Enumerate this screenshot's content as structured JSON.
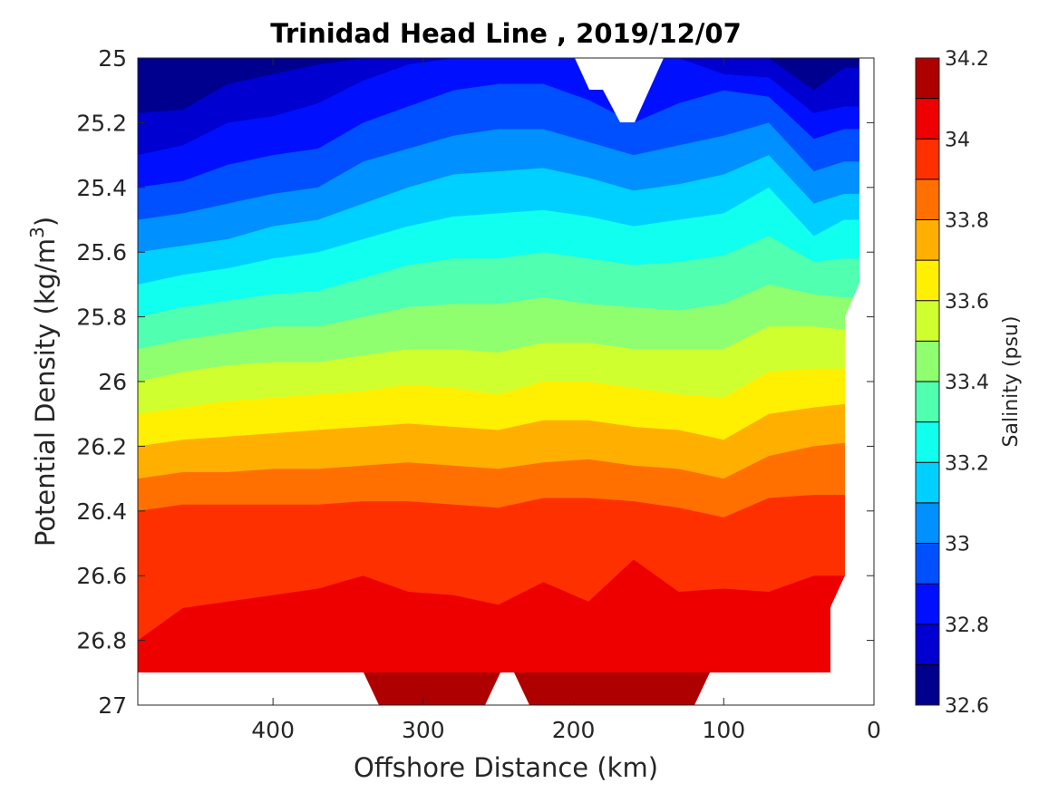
{
  "chart_data": {
    "type": "heatmap",
    "title": "Trinidad Head Line , 2019/12/07",
    "xlabel": "Offshore Distance (km)",
    "ylabel": "Potential Density (kg/m",
    "ylabel_sup": "3",
    "ylabel_close": ")",
    "xlim": [
      490,
      0
    ],
    "ylim": [
      25,
      27
    ],
    "x_reversed": true,
    "y_reversed": true,
    "x_ticks": [
      {
        "value": 400,
        "label": "400"
      },
      {
        "value": 300,
        "label": "300"
      },
      {
        "value": 200,
        "label": "200"
      },
      {
        "value": 100,
        "label": "100"
      },
      {
        "value": 0,
        "label": "0"
      }
    ],
    "y_ticks": [
      {
        "value": 25,
        "label": "25"
      },
      {
        "value": 25.2,
        "label": "25.2"
      },
      {
        "value": 25.4,
        "label": "25.4"
      },
      {
        "value": 25.6,
        "label": "25.6"
      },
      {
        "value": 25.8,
        "label": "25.8"
      },
      {
        "value": 26,
        "label": "26"
      },
      {
        "value": 26.2,
        "label": "26.2"
      },
      {
        "value": 26.4,
        "label": "26.4"
      },
      {
        "value": 26.6,
        "label": "26.6"
      },
      {
        "value": 26.8,
        "label": "26.8"
      },
      {
        "value": 27,
        "label": "27"
      }
    ],
    "colorbar": {
      "label": "Salinity (psu)",
      "range": [
        32.6,
        34.2
      ],
      "levels": [
        32.6,
        32.7,
        32.8,
        32.9,
        33.0,
        33.1,
        33.2,
        33.3,
        33.4,
        33.5,
        33.6,
        33.7,
        33.8,
        33.9,
        34.0,
        34.1,
        34.2
      ],
      "colors": [
        "#00008f",
        "#0000d0",
        "#0010ff",
        "#0050ff",
        "#0090ff",
        "#00d0ff",
        "#10ffef",
        "#50ffaf",
        "#90ff6f",
        "#d0ff2f",
        "#ffef00",
        "#ffaf00",
        "#ff7000",
        "#ff3000",
        "#ef0000",
        "#af0000"
      ],
      "ticks": [
        {
          "value": 32.6,
          "label": "32.6"
        },
        {
          "value": 32.8,
          "label": "32.8"
        },
        {
          "value": 33.0,
          "label": "33"
        },
        {
          "value": 33.2,
          "label": "33.2"
        },
        {
          "value": 33.4,
          "label": "33.4"
        },
        {
          "value": 33.6,
          "label": "33.6"
        },
        {
          "value": 33.8,
          "label": "33.8"
        },
        {
          "value": 34.0,
          "label": "34"
        },
        {
          "value": 34.2,
          "label": "34.2"
        }
      ]
    },
    "x_samples": [
      490,
      460,
      430,
      400,
      370,
      340,
      310,
      280,
      250,
      220,
      190,
      160,
      130,
      100,
      70,
      40,
      20
    ],
    "contour_boundaries": [
      {
        "upper_level": 32.7,
        "density": [
          25.17,
          25.16,
          25.08,
          25.05,
          25.02,
          25.0,
          25.0,
          25.0,
          25.0,
          25.0,
          25.0,
          25.0,
          25.0,
          25.0,
          25.0,
          25.1,
          25.03
        ]
      },
      {
        "upper_level": 32.8,
        "density": [
          25.3,
          25.27,
          25.2,
          25.18,
          25.14,
          25.07,
          25.02,
          25.0,
          25.0,
          25.0,
          25.0,
          25.0,
          25.0,
          25.05,
          25.06,
          25.17,
          25.15
        ]
      },
      {
        "upper_level": 32.9,
        "density": [
          25.4,
          25.38,
          25.33,
          25.3,
          25.28,
          25.2,
          25.15,
          25.1,
          25.08,
          25.08,
          25.13,
          25.2,
          25.14,
          25.1,
          25.12,
          25.25,
          25.22
        ]
      },
      {
        "upper_level": 33.0,
        "density": [
          25.5,
          25.48,
          25.45,
          25.42,
          25.4,
          25.32,
          25.28,
          25.24,
          25.22,
          25.22,
          25.26,
          25.3,
          25.27,
          25.24,
          25.2,
          25.35,
          25.32
        ]
      },
      {
        "upper_level": 33.1,
        "density": [
          25.6,
          25.58,
          25.56,
          25.52,
          25.5,
          25.45,
          25.4,
          25.36,
          25.35,
          25.34,
          25.37,
          25.41,
          25.39,
          25.36,
          25.3,
          25.45,
          25.42
        ]
      },
      {
        "upper_level": 33.2,
        "density": [
          25.7,
          25.67,
          25.65,
          25.62,
          25.6,
          25.56,
          25.52,
          25.49,
          25.48,
          25.47,
          25.49,
          25.52,
          25.5,
          25.48,
          25.4,
          25.55,
          25.5
        ]
      },
      {
        "upper_level": 33.3,
        "density": [
          25.8,
          25.77,
          25.75,
          25.73,
          25.72,
          25.68,
          25.64,
          25.62,
          25.62,
          25.6,
          25.62,
          25.64,
          25.63,
          25.61,
          25.55,
          25.63,
          25.62
        ]
      },
      {
        "upper_level": 33.4,
        "density": [
          25.9,
          25.87,
          25.85,
          25.83,
          25.83,
          25.8,
          25.77,
          25.76,
          25.76,
          25.74,
          25.76,
          25.77,
          25.78,
          25.76,
          25.7,
          25.73,
          25.74
        ]
      },
      {
        "upper_level": 33.5,
        "density": [
          26.0,
          25.97,
          25.95,
          25.94,
          25.94,
          25.92,
          25.9,
          25.9,
          25.91,
          25.88,
          25.88,
          25.9,
          25.9,
          25.9,
          25.83,
          25.83,
          25.84
        ]
      },
      {
        "upper_level": 33.6,
        "density": [
          26.1,
          26.08,
          26.06,
          26.05,
          26.04,
          26.03,
          26.01,
          26.02,
          26.04,
          26.0,
          26.0,
          26.02,
          26.04,
          26.05,
          25.97,
          25.96,
          25.96
        ]
      },
      {
        "upper_level": 33.7,
        "density": [
          26.2,
          26.18,
          26.17,
          26.16,
          26.15,
          26.14,
          26.13,
          26.14,
          26.15,
          26.12,
          26.12,
          26.14,
          26.15,
          26.18,
          26.1,
          26.08,
          26.07
        ]
      },
      {
        "upper_level": 33.8,
        "density": [
          26.3,
          26.28,
          26.28,
          26.27,
          26.27,
          26.26,
          26.25,
          26.26,
          26.27,
          26.25,
          26.24,
          26.26,
          26.27,
          26.3,
          26.23,
          26.2,
          26.19
        ]
      },
      {
        "upper_level": 33.9,
        "density": [
          26.4,
          26.38,
          26.38,
          26.38,
          26.38,
          26.37,
          26.37,
          26.38,
          26.39,
          26.36,
          26.36,
          26.37,
          26.39,
          26.42,
          26.36,
          26.35,
          26.35
        ]
      },
      {
        "upper_level": 34.0,
        "density": [
          26.8,
          26.7,
          26.68,
          26.66,
          26.64,
          26.6,
          26.65,
          26.66,
          26.69,
          26.62,
          26.68,
          26.55,
          26.65,
          26.64,
          26.65,
          26.6,
          26.6
        ]
      }
    ]
  }
}
